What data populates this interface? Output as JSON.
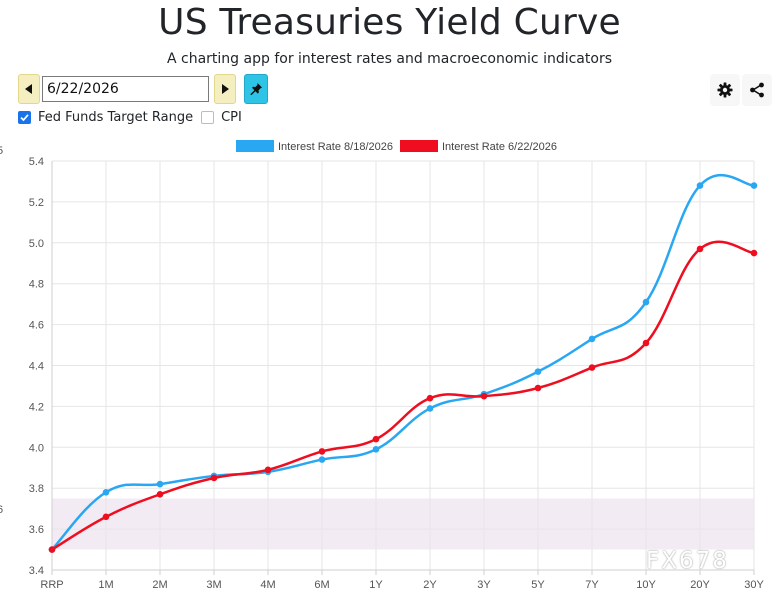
{
  "header": {
    "title": "US Treasuries Yield Curve",
    "subtitle": "A charting app for interest rates and macroeconomic indicators"
  },
  "toolbar": {
    "date_value": "6/22/2026",
    "prev_icon": "triangle-left-icon",
    "next_icon": "triangle-right-icon",
    "pin_icon": "pushpin-icon",
    "settings_icon": "gear-icon",
    "share_icon": "share-icon"
  },
  "options": [
    {
      "label": "Fed Funds Target Range",
      "checked": true
    },
    {
      "label": "CPI",
      "checked": false
    }
  ],
  "colors": {
    "series_blue": "#29a7f2",
    "series_red": "#ee0e1f",
    "fed_band": "#f3ebf4",
    "pin_button": "#2ec4e6",
    "nav_button": "#f5eec0",
    "checkbox": "#1a73e8"
  },
  "left_edge_labels": [
    "5",
    "6"
  ],
  "watermark": "FX678",
  "chart_data": {
    "type": "line",
    "categories": [
      "RRP",
      "1M",
      "2M",
      "3M",
      "4M",
      "6M",
      "1Y",
      "2Y",
      "3Y",
      "5Y",
      "7Y",
      "10Y",
      "20Y",
      "30Y"
    ],
    "ylim": [
      3.4,
      5.4
    ],
    "yticks": [
      "3.4",
      "3.6",
      "3.8",
      "4.0",
      "4.2",
      "4.4",
      "4.6",
      "4.8",
      "5.0",
      "5.2",
      "5.4"
    ],
    "grid": true,
    "legend_position": "top",
    "fed_funds_band": [
      3.5,
      3.75
    ],
    "series": [
      {
        "name": "Interest Rate 8/18/2026",
        "color": "#29a7f2",
        "values": [
          3.5,
          3.78,
          3.82,
          3.86,
          3.88,
          3.94,
          3.99,
          4.19,
          4.26,
          4.37,
          4.53,
          4.71,
          5.28,
          5.28
        ]
      },
      {
        "name": "Interest Rate 6/22/2026",
        "color": "#ee0e1f",
        "values": [
          3.5,
          3.66,
          3.77,
          3.85,
          3.89,
          3.98,
          4.04,
          4.24,
          4.25,
          4.29,
          4.39,
          4.51,
          4.97,
          4.95
        ]
      }
    ]
  }
}
